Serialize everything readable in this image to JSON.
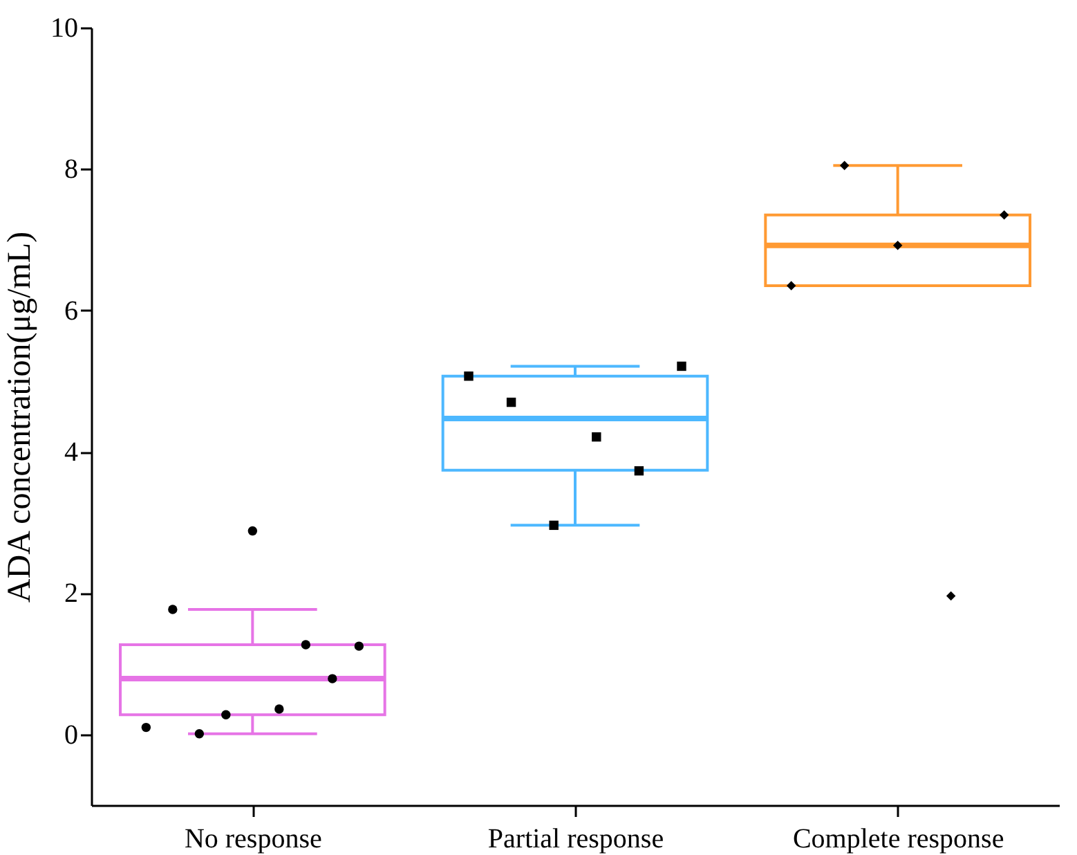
{
  "chart_data": {
    "type": "box",
    "ylabel": "ADA concentration(μg/mL)",
    "categories": [
      "No response",
      "Partial response",
      "Complete response"
    ],
    "colors": [
      "#e674e6",
      "#4db8ff",
      "#ff9a33"
    ],
    "boxes": [
      {
        "low": 0.01,
        "q1": 0.28,
        "median": 0.79,
        "q3": 1.27,
        "high": 1.77
      },
      {
        "low": 2.96,
        "q1": 3.74,
        "median": 4.47,
        "q3": 5.07,
        "high": 5.21
      },
      {
        "low": 6.35,
        "q1": 6.35,
        "median": 6.92,
        "q3": 7.35,
        "high": 8.05
      }
    ],
    "series": [
      {
        "type": "scatter",
        "marker": "circle",
        "color": "#000000",
        "x": [
          "No response",
          "No response",
          "No response",
          "No response",
          "No response",
          "No response",
          "No response",
          "No response",
          "No response"
        ],
        "values": [
          0.1,
          1.77,
          0.01,
          0.28,
          2.88,
          0.36,
          1.27,
          0.79,
          1.25
        ]
      },
      {
        "type": "scatter",
        "marker": "square",
        "color": "#000000",
        "x": [
          "Partial response",
          "Partial response",
          "Partial response",
          "Partial response",
          "Partial response",
          "Partial response"
        ],
        "values": [
          5.07,
          4.7,
          2.96,
          4.21,
          3.73,
          5.21
        ]
      },
      {
        "type": "scatter",
        "marker": "diamond",
        "color": "#000000",
        "x": [
          "Complete response",
          "Complete response",
          "Complete response",
          "Complete response",
          "Complete response"
        ],
        "values": [
          6.35,
          8.05,
          6.92,
          1.96,
          7.35
        ]
      }
    ],
    "ylim": [
      -1,
      10
    ],
    "yticks": [
      0,
      2,
      4,
      6,
      8,
      10
    ],
    "grid": false,
    "legend": false
  }
}
